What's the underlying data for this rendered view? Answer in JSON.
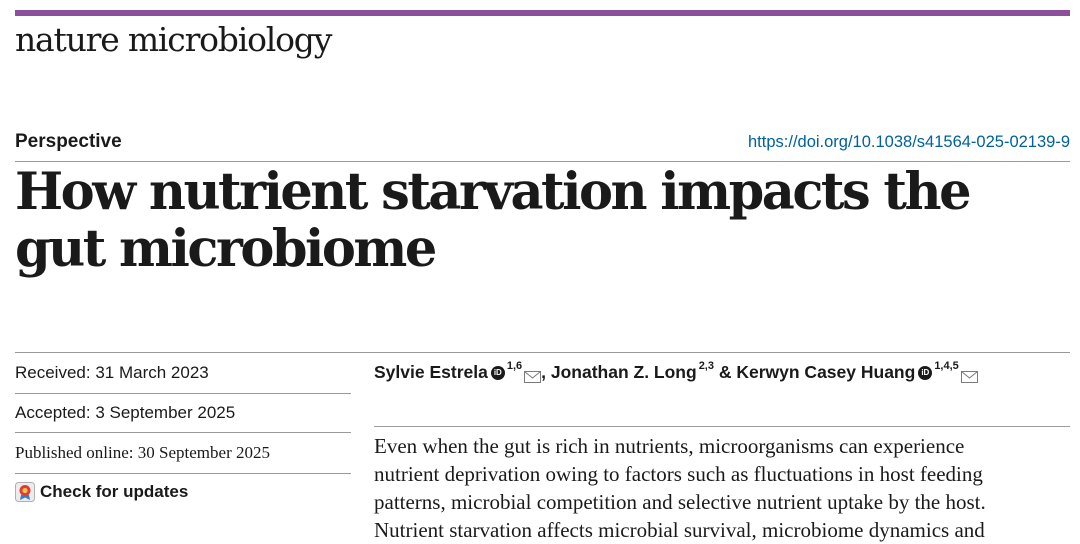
{
  "header": {
    "journal_name": "nature microbiology",
    "accent_color": "#8b4f9e"
  },
  "article": {
    "type": "Perspective",
    "doi": "https://doi.org/10.1038/s41564-025-02139-9",
    "title_line1": "How nutrient starvation impacts the",
    "title_line2": "gut microbiome"
  },
  "dates": {
    "received": "Received: 31 March 2023",
    "accepted": "Accepted: 3 September 2025",
    "published": "Published online: 30 September 2025",
    "check_updates": "Check for updates"
  },
  "authors": {
    "a1": {
      "name": "Sylvie Estrela",
      "sup": "1,6"
    },
    "sep1": ", ",
    "a2": {
      "name": "Jonathan Z. Long",
      "sup": "2,3"
    },
    "sep2": " & ",
    "a3": {
      "name": "Kerwyn Casey Huang",
      "sup": "1,4,5"
    },
    "orcid_label": "iD"
  },
  "abstract": {
    "line1": "Even when the gut is rich in nutrients, microorganisms can experience",
    "line2": "nutrient deprivation owing to factors such as fluctuations in host feeding",
    "line3": "patterns, microbial competition and selective nutrient uptake by the host.",
    "line4": "Nutrient starvation affects microbial survival, microbiome dynamics and"
  }
}
